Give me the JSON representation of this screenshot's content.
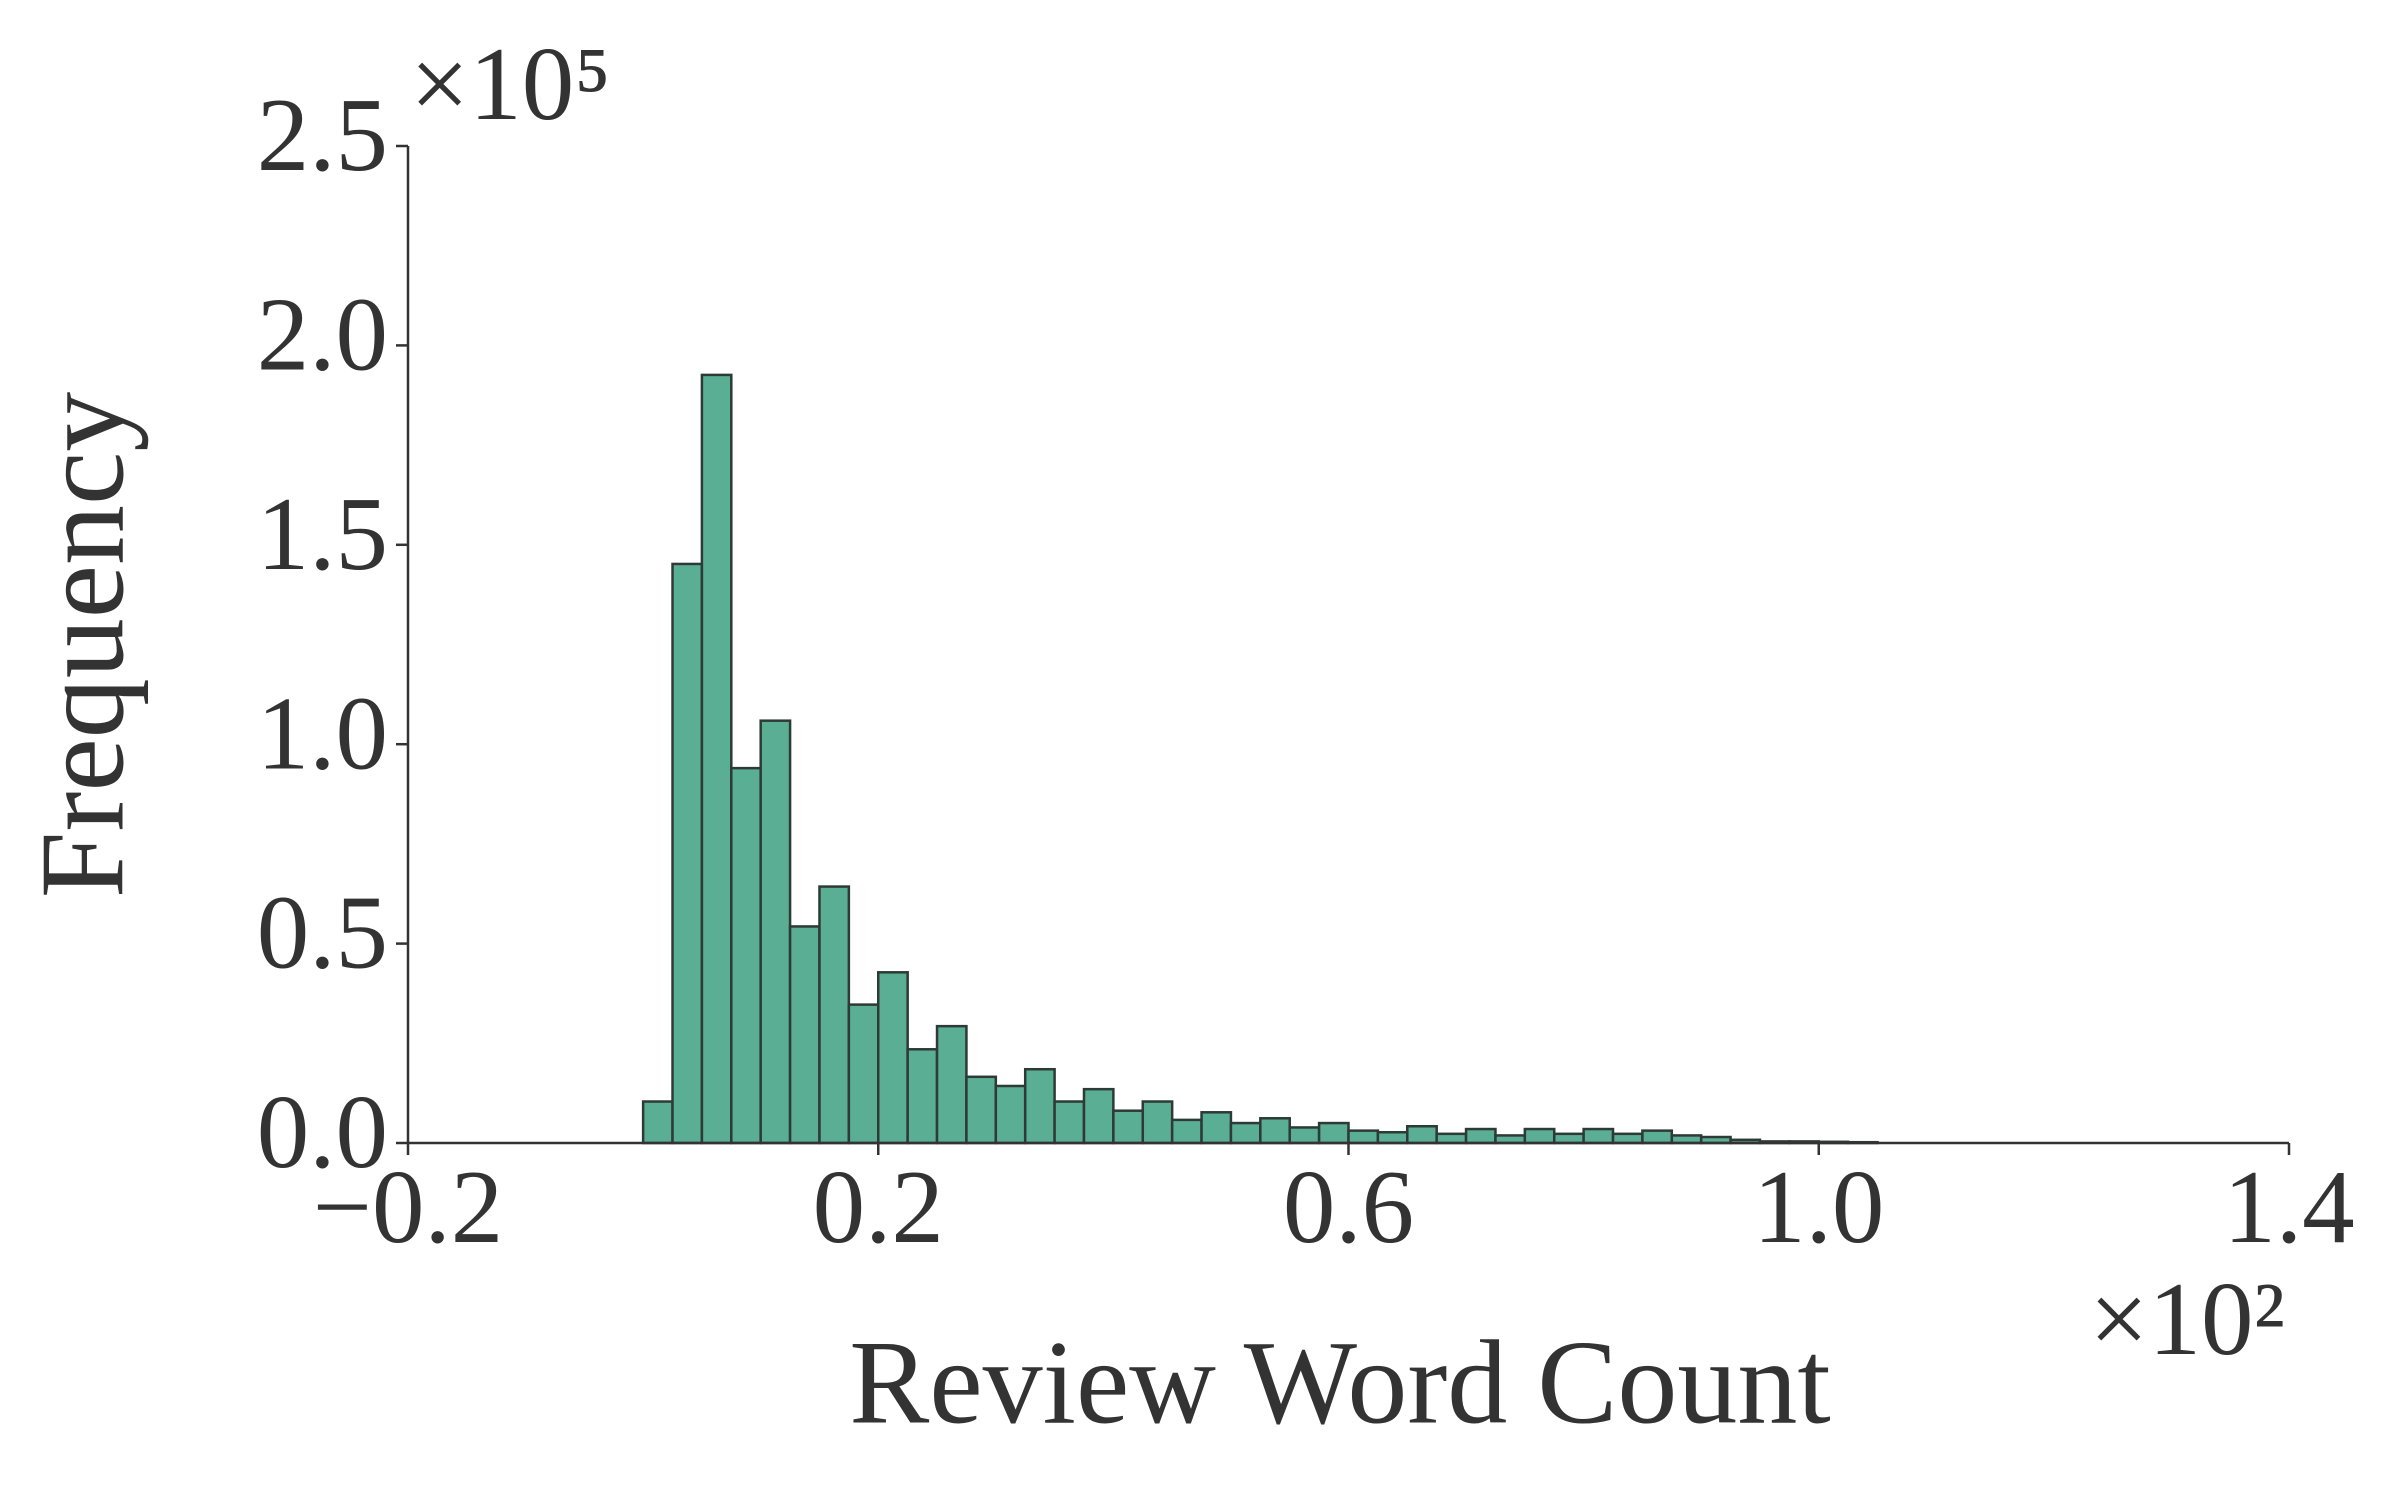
{
  "chart_data": {
    "type": "histogram",
    "x_label": "Review Word Count",
    "y_label": "Frequency",
    "x_offset_text": "×10²",
    "y_offset_text": "×10⁵",
    "bins": [
      0,
      0.025,
      0.05,
      0.075,
      0.1,
      0.125,
      0.15,
      0.175,
      0.2,
      0.225,
      0.25,
      0.275,
      0.3,
      0.325,
      0.35,
      0.375,
      0.4,
      0.425,
      0.45,
      0.475,
      0.5,
      0.525,
      0.55,
      0.575,
      0.6,
      0.625,
      0.65,
      0.675,
      0.7,
      0.725,
      0.75,
      0.775,
      0.8,
      0.825,
      0.85,
      0.875,
      0.9,
      0.925,
      0.95,
      0.975,
      1.0,
      1.025,
      1.05
    ],
    "values": [
      0.104,
      1.452,
      1.926,
      0.94,
      1.059,
      0.543,
      0.643,
      0.347,
      0.428,
      0.235,
      0.293,
      0.166,
      0.143,
      0.185,
      0.104,
      0.135,
      0.081,
      0.104,
      0.058,
      0.077,
      0.05,
      0.062,
      0.039,
      0.05,
      0.031,
      0.027,
      0.042,
      0.023,
      0.035,
      0.019,
      0.035,
      0.023,
      0.035,
      0.023,
      0.031,
      0.019,
      0.015,
      0.008,
      0.004,
      0.004,
      0.003,
      0.002
    ],
    "color": "#5aae94",
    "edge_color": "#2d3a35",
    "xlim": [
      -0.2,
      1.4
    ],
    "xticks": [
      {
        "value": -0.2,
        "label": "−0.2"
      },
      0.2,
      0.6,
      {
        "value": 1.0,
        "label": "1.0"
      },
      1.4
    ],
    "ylim": [
      0,
      2.5
    ],
    "yticks": [
      {
        "value": 0,
        "label": "0.0"
      },
      0.5,
      {
        "value": 1.0,
        "label": "1.0"
      },
      1.5,
      {
        "value": 2.0,
        "label": "2.0"
      },
      2.5
    ],
    "grid": false
  }
}
